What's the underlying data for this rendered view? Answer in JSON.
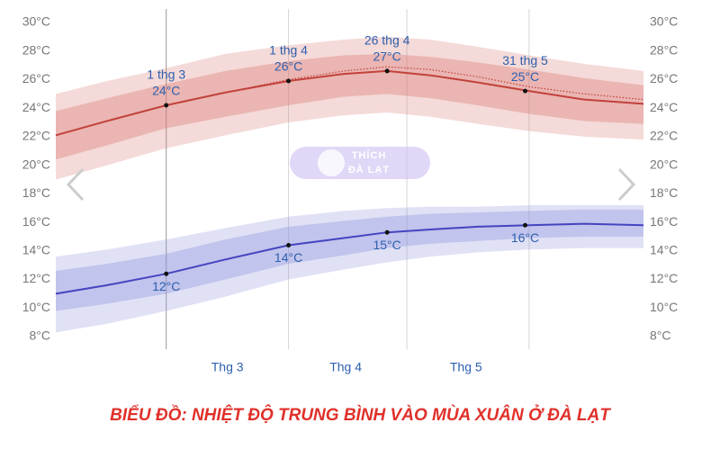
{
  "chart_data": {
    "type": "line",
    "title": "BIỂU ĐỒ: NHIỆT ĐỘ TRUNG BÌNH VÀO MÙA XUÂN Ở ĐÀ LẠT",
    "watermark": [
      "THÍCH",
      "ĐÀ LẠT"
    ],
    "xlim": [
      32,
      181
    ],
    "ylim": [
      8,
      30
    ],
    "xgrid": [
      60,
      91,
      121,
      152
    ],
    "xticks": [
      {
        "value": 75.5,
        "label": "Thg 3"
      },
      {
        "value": 105.5,
        "label": "Thg 4"
      },
      {
        "value": 136,
        "label": "Thg 5"
      }
    ],
    "yticks": [
      {
        "value": 8,
        "label": "8°C"
      },
      {
        "value": 10,
        "label": "10°C"
      },
      {
        "value": 12,
        "label": "12°C"
      },
      {
        "value": 14,
        "label": "14°C"
      },
      {
        "value": 16,
        "label": "16°C"
      },
      {
        "value": 18,
        "label": "18°C"
      },
      {
        "value": 20,
        "label": "20°C"
      },
      {
        "value": 22,
        "label": "22°C"
      },
      {
        "value": 24,
        "label": "24°C"
      },
      {
        "value": 26,
        "label": "26°C"
      },
      {
        "value": 28,
        "label": "28°C"
      },
      {
        "value": 30,
        "label": "30°C"
      }
    ],
    "x": [
      32,
      45,
      60,
      75,
      91,
      105,
      116,
      127,
      139,
      152,
      166,
      181
    ],
    "series": [
      {
        "color": "#c2413b",
        "band_color": "#d97a74",
        "values": [
          22.1,
          23.1,
          24.2,
          25.1,
          25.9,
          26.4,
          26.6,
          26.3,
          25.8,
          25.2,
          24.6,
          24.3
        ],
        "p25": [
          20.4,
          21.4,
          22.6,
          23.4,
          24.2,
          24.8,
          25.0,
          24.7,
          24.2,
          23.6,
          23.1,
          22.9
        ],
        "p75": [
          23.8,
          24.7,
          25.7,
          26.6,
          27.3,
          27.7,
          27.8,
          27.6,
          27.2,
          26.7,
          26.1,
          25.6
        ],
        "p10": [
          19.0,
          20.0,
          21.2,
          22.1,
          23.0,
          23.5,
          23.7,
          23.4,
          22.9,
          22.4,
          22.0,
          21.8
        ],
        "p90": [
          25.0,
          25.9,
          26.8,
          27.8,
          28.4,
          28.8,
          29.0,
          28.8,
          28.3,
          27.7,
          27.1,
          26.6
        ],
        "dotted": [
          22.1,
          23.1,
          24.2,
          25.1,
          26.0,
          26.6,
          26.9,
          26.7,
          26.2,
          25.5,
          25.0,
          24.6
        ]
      },
      {
        "color": "#4444c0",
        "band_color": "#8f95dc",
        "values": [
          11.0,
          11.6,
          12.4,
          13.4,
          14.4,
          14.9,
          15.3,
          15.5,
          15.7,
          15.8,
          15.9,
          15.8
        ],
        "p25": [
          9.8,
          10.3,
          11.0,
          12.0,
          13.1,
          13.7,
          14.2,
          14.5,
          14.7,
          14.9,
          15.0,
          15.0
        ],
        "p75": [
          12.6,
          13.1,
          13.8,
          14.8,
          15.7,
          16.1,
          16.4,
          16.6,
          16.7,
          16.8,
          16.9,
          16.9
        ],
        "p10": [
          8.3,
          8.9,
          9.8,
          10.8,
          12.0,
          12.7,
          13.2,
          13.6,
          13.9,
          14.1,
          14.2,
          14.2
        ],
        "p90": [
          13.6,
          14.1,
          14.8,
          15.6,
          16.4,
          16.8,
          17.0,
          17.1,
          17.1,
          17.2,
          17.2,
          17.2
        ]
      }
    ],
    "annotations": [
      {
        "series": 0,
        "x": 60,
        "value": 24.2,
        "date": "1 thg 3",
        "label": "24°C"
      },
      {
        "series": 0,
        "x": 91,
        "value": 25.9,
        "date": "1 thg 4",
        "label": "26°C"
      },
      {
        "series": 0,
        "x": 116,
        "value": 26.6,
        "date": "26 thg 4",
        "label": "27°C"
      },
      {
        "series": 0,
        "x": 151,
        "value": 25.2,
        "date": "31 thg 5",
        "label": "25°C"
      },
      {
        "series": 1,
        "x": 60,
        "value": 12.4,
        "label": "12°C"
      },
      {
        "series": 1,
        "x": 91,
        "value": 14.4,
        "label": "14°C"
      },
      {
        "series": 1,
        "x": 116,
        "value": 15.3,
        "label": "15°C"
      },
      {
        "series": 1,
        "x": 151,
        "value": 15.8,
        "label": "16°C"
      }
    ]
  }
}
